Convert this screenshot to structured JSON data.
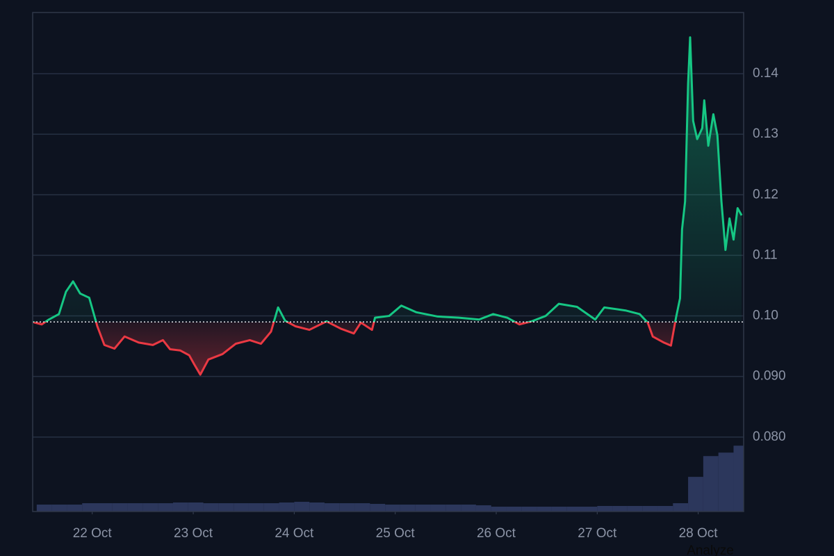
{
  "chart_data": {
    "type": "line",
    "x": [
      21.41,
      21.5,
      21.57,
      21.67,
      21.74,
      21.81,
      21.88,
      21.97,
      22.05,
      22.12,
      22.22,
      22.32,
      22.46,
      22.6,
      22.7,
      22.77,
      22.87,
      22.96,
      23.01,
      23.07,
      23.15,
      23.29,
      23.42,
      23.56,
      23.67,
      23.77,
      23.84,
      23.91,
      24.01,
      24.15,
      24.32,
      24.46,
      24.59,
      24.66,
      24.77,
      24.8,
      24.94,
      25.06,
      25.21,
      25.42,
      25.63,
      25.83,
      25.97,
      26.11,
      26.23,
      26.35,
      26.49,
      26.62,
      26.8,
      26.98,
      27.07,
      27.28,
      27.42,
      27.5,
      27.55,
      27.66,
      27.73,
      27.78,
      27.82,
      27.84,
      27.87,
      27.9,
      27.92,
      27.95,
      27.99,
      28.04,
      28.06,
      28.1,
      28.15,
      28.19,
      28.23,
      28.27,
      28.31,
      28.35,
      28.39,
      28.43
    ],
    "values": [
      0.099,
      0.0986,
      0.0994,
      0.1003,
      0.104,
      0.1057,
      0.1037,
      0.103,
      0.0983,
      0.0952,
      0.0946,
      0.0966,
      0.0956,
      0.0952,
      0.096,
      0.0945,
      0.0943,
      0.0935,
      0.092,
      0.0903,
      0.0928,
      0.0937,
      0.0954,
      0.096,
      0.0954,
      0.0974,
      0.1014,
      0.0992,
      0.0983,
      0.0977,
      0.0991,
      0.0979,
      0.0971,
      0.0989,
      0.0977,
      0.0997,
      0.1,
      0.1017,
      0.1006,
      0.0999,
      0.0997,
      0.0994,
      0.1003,
      0.0997,
      0.0986,
      0.0991,
      0.1,
      0.102,
      0.1015,
      0.0994,
      0.1014,
      0.1009,
      0.1003,
      0.0989,
      0.0966,
      0.0956,
      0.0951,
      0.0997,
      0.1029,
      0.1143,
      0.1189,
      0.1384,
      0.146,
      0.1322,
      0.1292,
      0.131,
      0.1356,
      0.1281,
      0.1333,
      0.1298,
      0.1189,
      0.1109,
      0.1161,
      0.1126,
      0.1178,
      0.1166
    ],
    "baseline": 0.099,
    "up_color": "#16c784",
    "down_color": "#ea3943",
    "xlim": [
      21.41,
      28.45
    ],
    "xticks": [
      {
        "value": 22,
        "label": "22 Oct"
      },
      {
        "value": 23,
        "label": "23 Oct"
      },
      {
        "value": 24,
        "label": "24 Oct"
      },
      {
        "value": 25,
        "label": "25 Oct"
      },
      {
        "value": 26,
        "label": "26 Oct"
      },
      {
        "value": 27,
        "label": "27 Oct"
      },
      {
        "value": 28,
        "label": "28 Oct"
      }
    ],
    "ylim": [
      0.0677,
      0.1501
    ],
    "yticks": [
      0.14,
      0.13,
      0.12,
      0.11,
      {
        "value": 0.1,
        "label": "0.10"
      },
      {
        "value": 0.09,
        "label": "0.090"
      },
      {
        "value": 0.08,
        "label": "0.080"
      }
    ],
    "grid": true,
    "volume": {
      "axis": "y2",
      "color": "#2c375c",
      "x": [
        21.45,
        21.6,
        21.75,
        21.9,
        22.05,
        22.2,
        22.35,
        22.5,
        22.65,
        22.8,
        22.95,
        23.1,
        23.25,
        23.4,
        23.55,
        23.7,
        23.85,
        24.0,
        24.15,
        24.3,
        24.45,
        24.6,
        24.75,
        24.9,
        25.05,
        25.2,
        25.35,
        25.5,
        25.65,
        25.8,
        25.95,
        26.1,
        26.25,
        26.4,
        26.55,
        26.7,
        26.85,
        27.0,
        27.15,
        27.3,
        27.45,
        27.6,
        27.75,
        27.9,
        28.05,
        28.2,
        28.35
      ],
      "values": [
        0.1,
        0.1,
        0.1,
        0.12,
        0.12,
        0.12,
        0.12,
        0.12,
        0.12,
        0.13,
        0.13,
        0.12,
        0.12,
        0.12,
        0.12,
        0.12,
        0.13,
        0.14,
        0.13,
        0.12,
        0.12,
        0.12,
        0.11,
        0.1,
        0.1,
        0.1,
        0.1,
        0.1,
        0.1,
        0.09,
        0.07,
        0.07,
        0.07,
        0.07,
        0.07,
        0.07,
        0.07,
        0.08,
        0.08,
        0.08,
        0.08,
        0.08,
        0.12,
        0.5,
        0.8,
        0.85,
        0.95
      ]
    },
    "y2lim": [
      0,
      7.2
    ]
  },
  "analyze_button": "Analyze"
}
